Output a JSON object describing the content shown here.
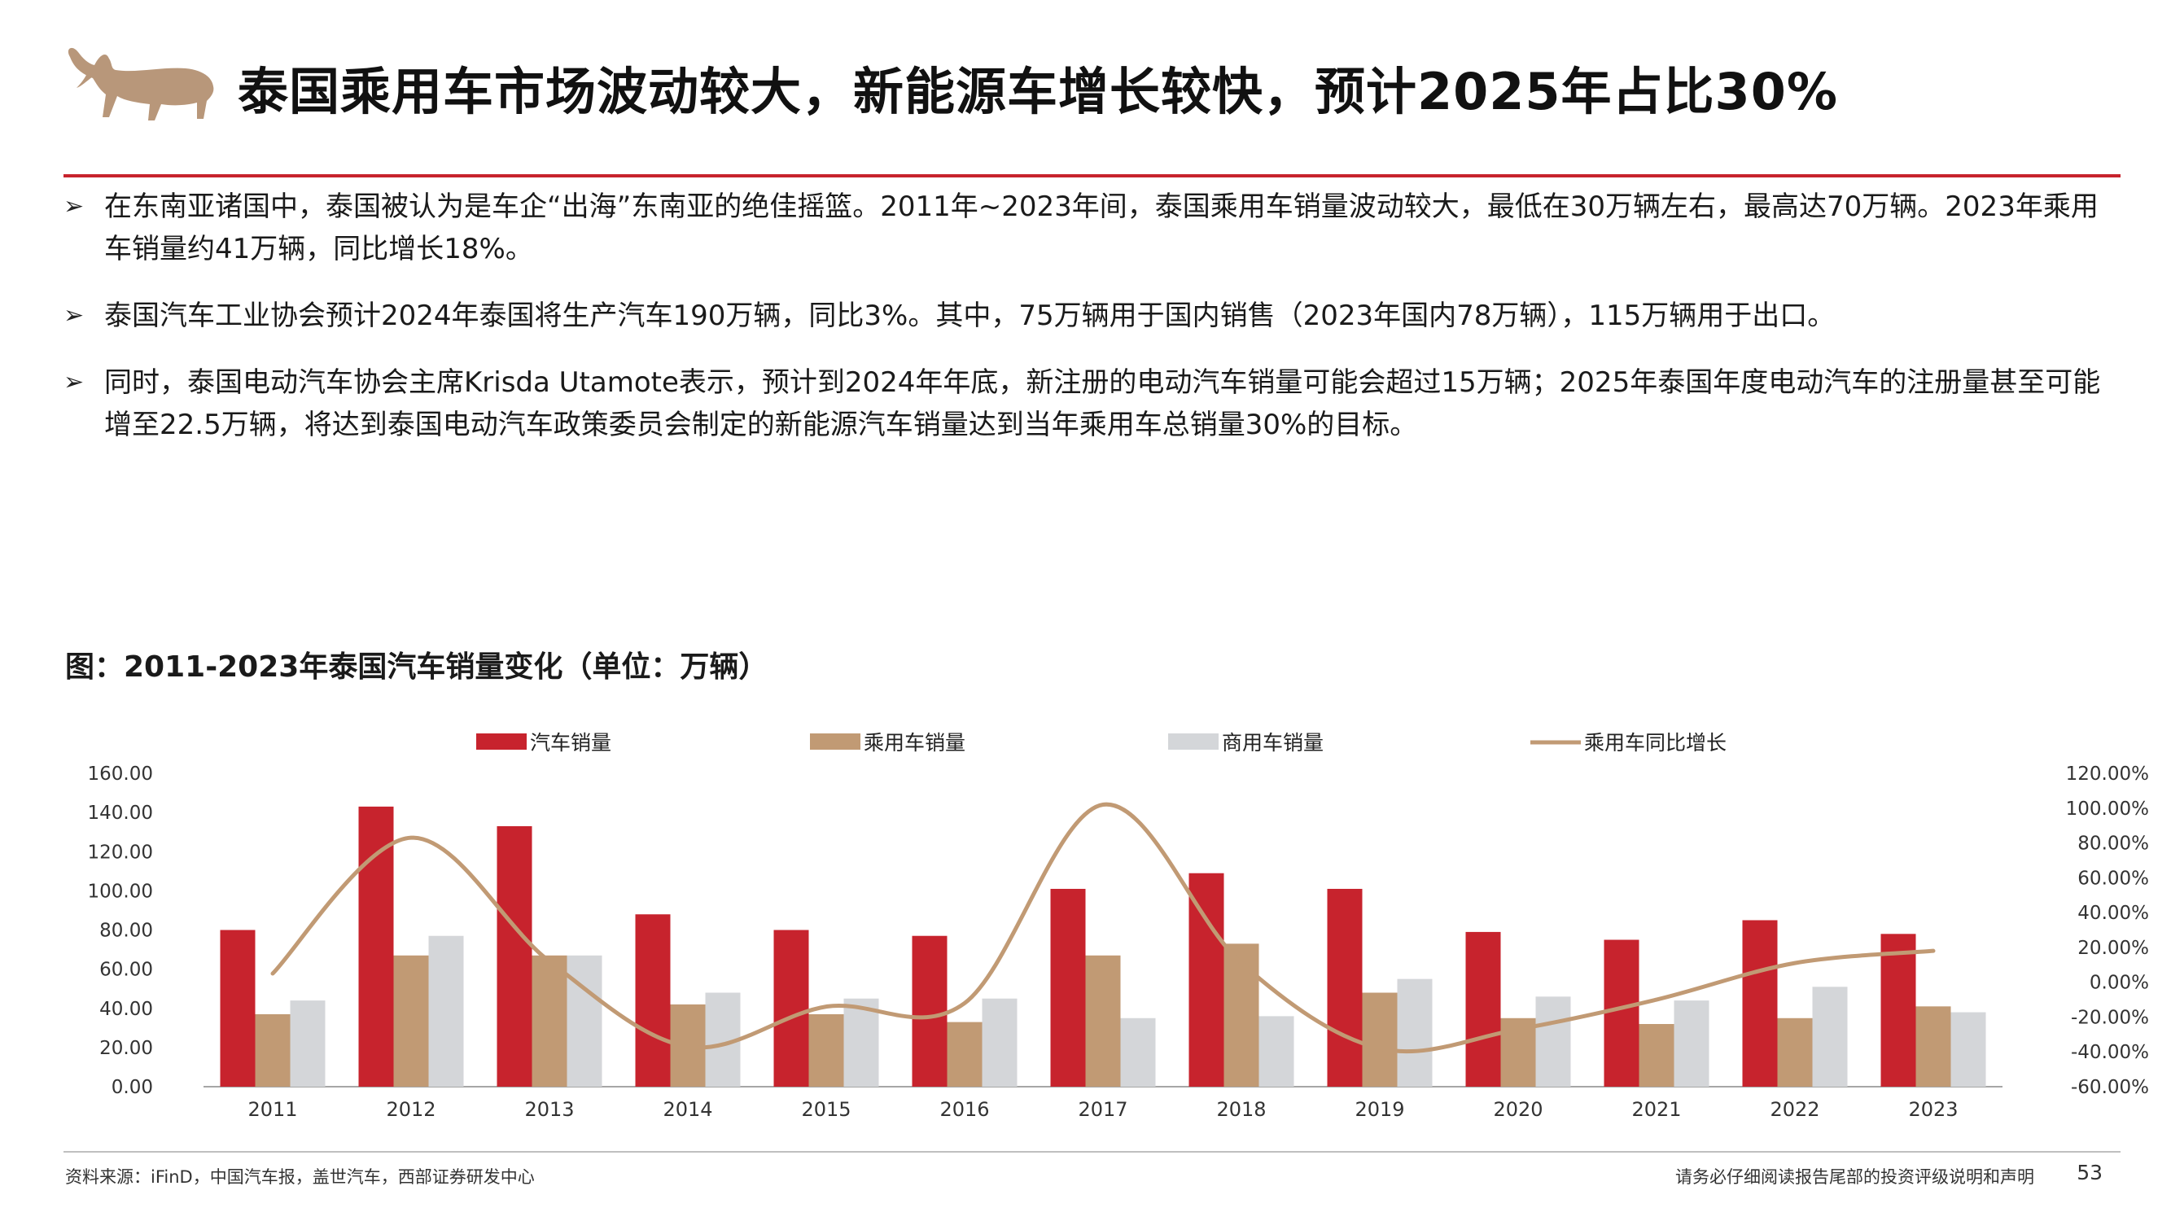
{
  "header": {
    "title": "泰国乘用车市场波动较大，新能源车增长较快，预计2025年占比30%"
  },
  "bullets": [
    "在东南亚诸国中，泰国被认为是车企“出海”东南亚的绝佳摇篮。2011年~2023年间，泰国乘用车销量波动较大，最低在30万辆左右，最高达70万辆。2023年乘用车销量约41万辆，同比增长18%。",
    "泰国汽车工业协会预计2024年泰国将生产汽车190万辆，同比3%。其中，75万辆用于国内销售（2023年国内78万辆），115万辆用于出口。",
    "同时，泰国电动汽车协会主席Krisda Utamote表示，预计到2024年年底，新注册的电动汽车销量可能会超过15万辆；2025年泰国年度电动汽车的注册量甚至可能增至22.5万辆，将达到泰国电动汽车政策委员会制定的新能源汽车销量达到当年乘用车总销量30%的目标。"
  ],
  "bullet_symbol": "➢",
  "figure": {
    "caption": "图：2011-2023年泰国汽车销量变化（单位：万辆）"
  },
  "footer": {
    "source": "资料来源：iFinD，中国汽车报，盖世汽车，西部证券研发中心",
    "disclaimer": "请务必仔细阅读报告尾部的投资评级说明和声明",
    "page": "53"
  },
  "colors": {
    "accent": "#c7232d",
    "car_sales": "#c7232d",
    "passenger": "#c19a74",
    "commercial": "#d4d6d9",
    "yoy_line": "#c19a74"
  },
  "chart_data": {
    "type": "bar",
    "categories": [
      "2011",
      "2012",
      "2013",
      "2014",
      "2015",
      "2016",
      "2017",
      "2018",
      "2019",
      "2020",
      "2021",
      "2022",
      "2023"
    ],
    "series": [
      {
        "name": "汽车销量",
        "type": "bar",
        "axis": "left",
        "color": "#c7232d",
        "values": [
          80,
          143,
          133,
          88,
          80,
          77,
          101,
          109,
          101,
          79,
          75,
          85,
          78
        ]
      },
      {
        "name": "乘用车销量",
        "type": "bar",
        "axis": "left",
        "color": "#c19a74",
        "values": [
          37,
          67,
          67,
          42,
          37,
          33,
          67,
          73,
          48,
          35,
          32,
          35,
          41
        ]
      },
      {
        "name": "商用车销量",
        "type": "bar",
        "axis": "left",
        "color": "#d4d6d9",
        "values": [
          44,
          77,
          67,
          48,
          45,
          45,
          35,
          36,
          55,
          46,
          44,
          51,
          38
        ]
      },
      {
        "name": "乘用车同比增长",
        "type": "line",
        "axis": "right",
        "color": "#c19a74",
        "values": [
          5,
          83,
          12,
          -37,
          -14,
          -12,
          102,
          11,
          -38,
          -27,
          -10,
          11,
          18
        ]
      }
    ],
    "left_axis": {
      "min": 0,
      "max": 160,
      "step": 20,
      "tick_labels": [
        "0.00",
        "20.00",
        "40.00",
        "60.00",
        "80.00",
        "100.00",
        "120.00",
        "140.00",
        "160.00"
      ]
    },
    "right_axis": {
      "min": -60,
      "max": 120,
      "step": 20,
      "tick_labels": [
        "-60.00%",
        "-40.00%",
        "-20.00%",
        "0.00%",
        "20.00%",
        "40.00%",
        "60.00%",
        "80.00%",
        "100.00%",
        "120.00%"
      ]
    },
    "legend_position": "top",
    "grid": false
  }
}
